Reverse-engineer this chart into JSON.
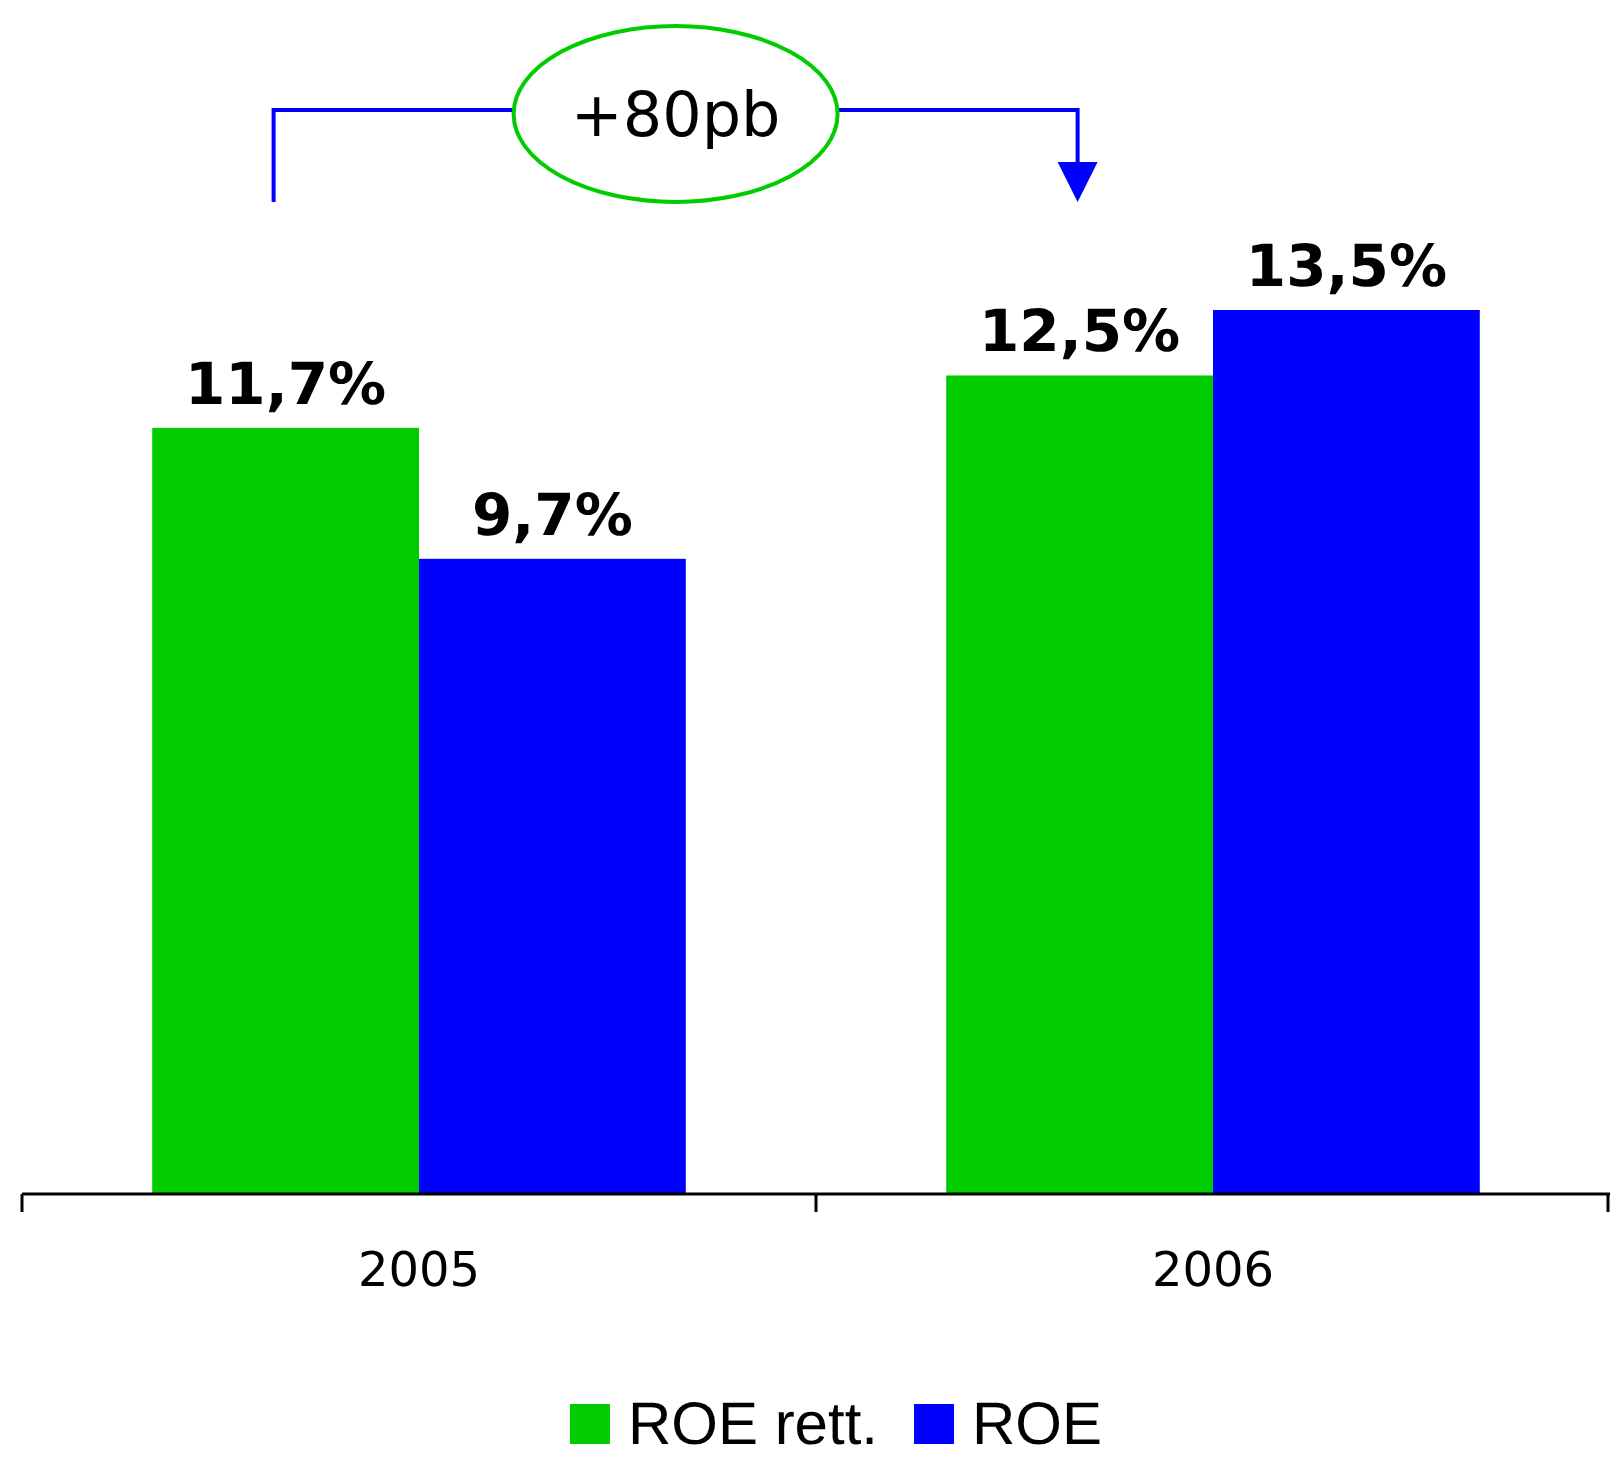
{
  "chart_data": {
    "type": "bar",
    "categories": [
      "2005",
      "2006"
    ],
    "series": [
      {
        "name": "ROE rett.",
        "color": "#00cc00",
        "values": [
          11.7,
          12.5
        ],
        "value_labels": [
          "11,7%",
          "12,5%"
        ]
      },
      {
        "name": "ROE",
        "color": "#0000ff",
        "values": [
          9.7,
          13.5
        ],
        "value_labels": [
          "9,7%",
          "13,5%"
        ]
      }
    ],
    "legend": "bottom",
    "annotations": [
      "+80pb"
    ]
  }
}
